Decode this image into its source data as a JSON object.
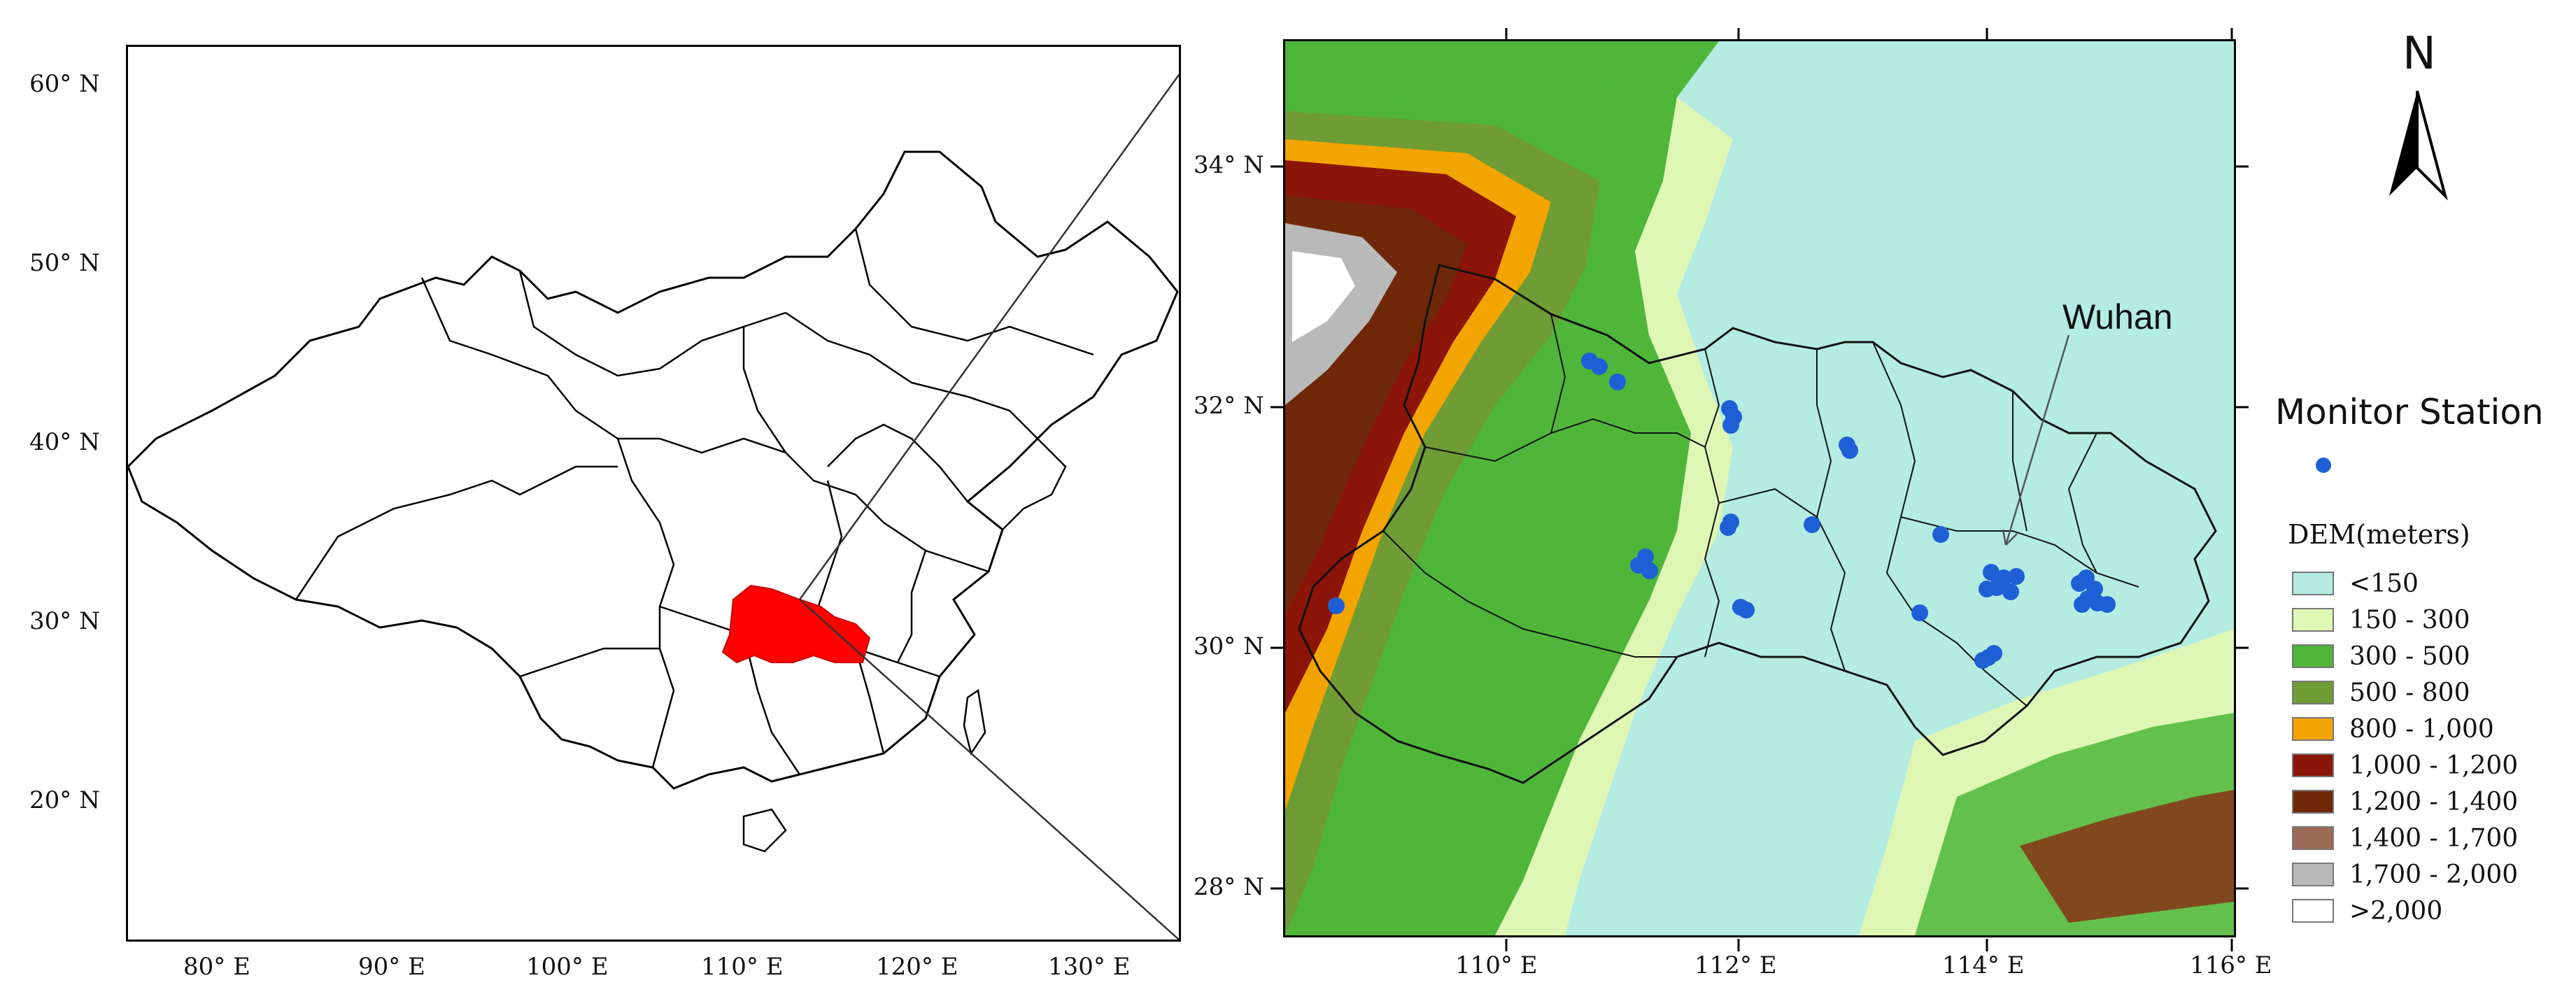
{
  "left_map": {
    "lat_labels": [
      "60° N",
      "50° N",
      "40° N",
      "30° N",
      "20° N"
    ],
    "lon_labels": [
      "80° E",
      "90° E",
      "100° E",
      "110° E",
      "120° E",
      "130° E"
    ]
  },
  "right_map": {
    "lat_labels": [
      "34° N",
      "32° N",
      "30° N",
      "28° N"
    ],
    "lon_labels": [
      "110° E",
      "112° E",
      "114° E",
      "116° E"
    ],
    "city_label": "Wuhan"
  },
  "north_arrow": {
    "letter": "N",
    "icon": "north-arrow-icon"
  },
  "legend": {
    "station_title": "Monitor Station",
    "station_color": "#1f5fd6",
    "dem_title": "DEM(meters)",
    "dem_classes": [
      {
        "label": "<150",
        "color": "#b4ece2"
      },
      {
        "label": "150 - 300",
        "color": "#dff7b5"
      },
      {
        "label": "300 - 500",
        "color": "#4fb63a"
      },
      {
        "label": "500 - 800",
        "color": "#6f9c35"
      },
      {
        "label": "800 - 1,000",
        "color": "#f2a400"
      },
      {
        "label": "1,000 - 1,200",
        "color": "#8b1508"
      },
      {
        "label": "1,200 - 1,400",
        "color": "#6e2808"
      },
      {
        "label": "1,400 - 1,700",
        "color": "#9b6b55"
      },
      {
        "label": "1,700 - 2,000",
        "color": "#b9b9b9"
      },
      {
        "label": ">2,000",
        "color": "#ffffff"
      }
    ]
  },
  "colors": {
    "highlight_province": "#ff0000"
  }
}
